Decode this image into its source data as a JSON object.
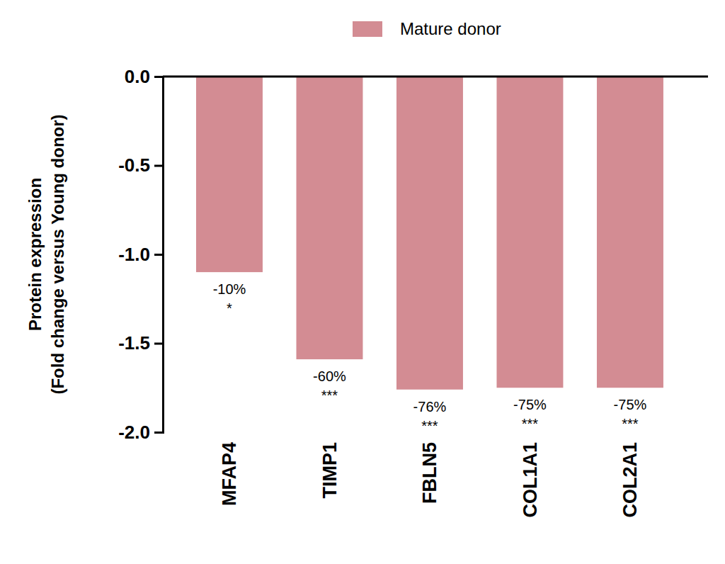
{
  "chart_data": {
    "type": "bar",
    "ylabel": "Protein expression\n(Fold change versus Young donor)",
    "categories": [
      "MFAP4",
      "TIMP1",
      "FBLN5",
      "COL1A1",
      "COL2A1"
    ],
    "series": [
      {
        "name": "Mature donor",
        "color": "#d38c93",
        "values": [
          -1.1,
          -1.59,
          -1.76,
          -1.75,
          -1.75
        ]
      }
    ],
    "annotations": [
      {
        "text": "-10%",
        "significance": "*"
      },
      {
        "text": "-60%",
        "significance": "***"
      },
      {
        "text": "-76%",
        "significance": "***"
      },
      {
        "text": "-75%",
        "significance": "***"
      },
      {
        "text": "-75%",
        "significance": "***"
      }
    ],
    "ylim": [
      -2,
      0
    ],
    "yticks": [
      {
        "value": 0,
        "label": "0.0"
      },
      -0.5,
      {
        "value": -1,
        "label": "-1.0"
      },
      -1.5,
      {
        "value": -2,
        "label": "-2.0"
      }
    ],
    "grid": false,
    "legend": "top"
  }
}
